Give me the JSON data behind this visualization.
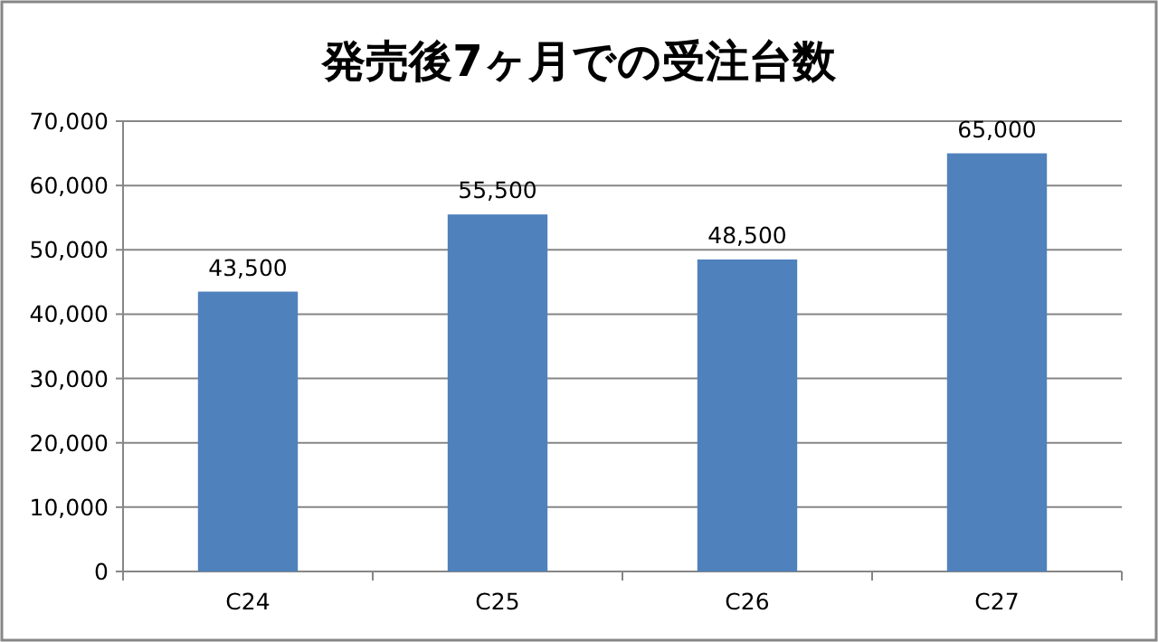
{
  "chart_data": {
    "type": "bar",
    "title": "発売後7ヶ月での受注台数",
    "categories": [
      "C24",
      "C25",
      "C26",
      "C27"
    ],
    "values": [
      43500,
      55500,
      48500,
      65000
    ],
    "value_labels": [
      "43,500",
      "55,500",
      "48,500",
      "65,000"
    ],
    "color": "#4f81bd",
    "ylim": [
      0,
      70000
    ],
    "yticks": [
      {
        "value": 0,
        "label": "0"
      },
      {
        "value": 10000,
        "label": "10,000"
      },
      {
        "value": 20000,
        "label": "20,000"
      },
      {
        "value": 30000,
        "label": "30,000"
      },
      {
        "value": 40000,
        "label": "40,000"
      },
      {
        "value": 50000,
        "label": "50,000"
      },
      {
        "value": 60000,
        "label": "60,000"
      },
      {
        "value": 70000,
        "label": "70,000"
      }
    ],
    "grid": "y"
  }
}
